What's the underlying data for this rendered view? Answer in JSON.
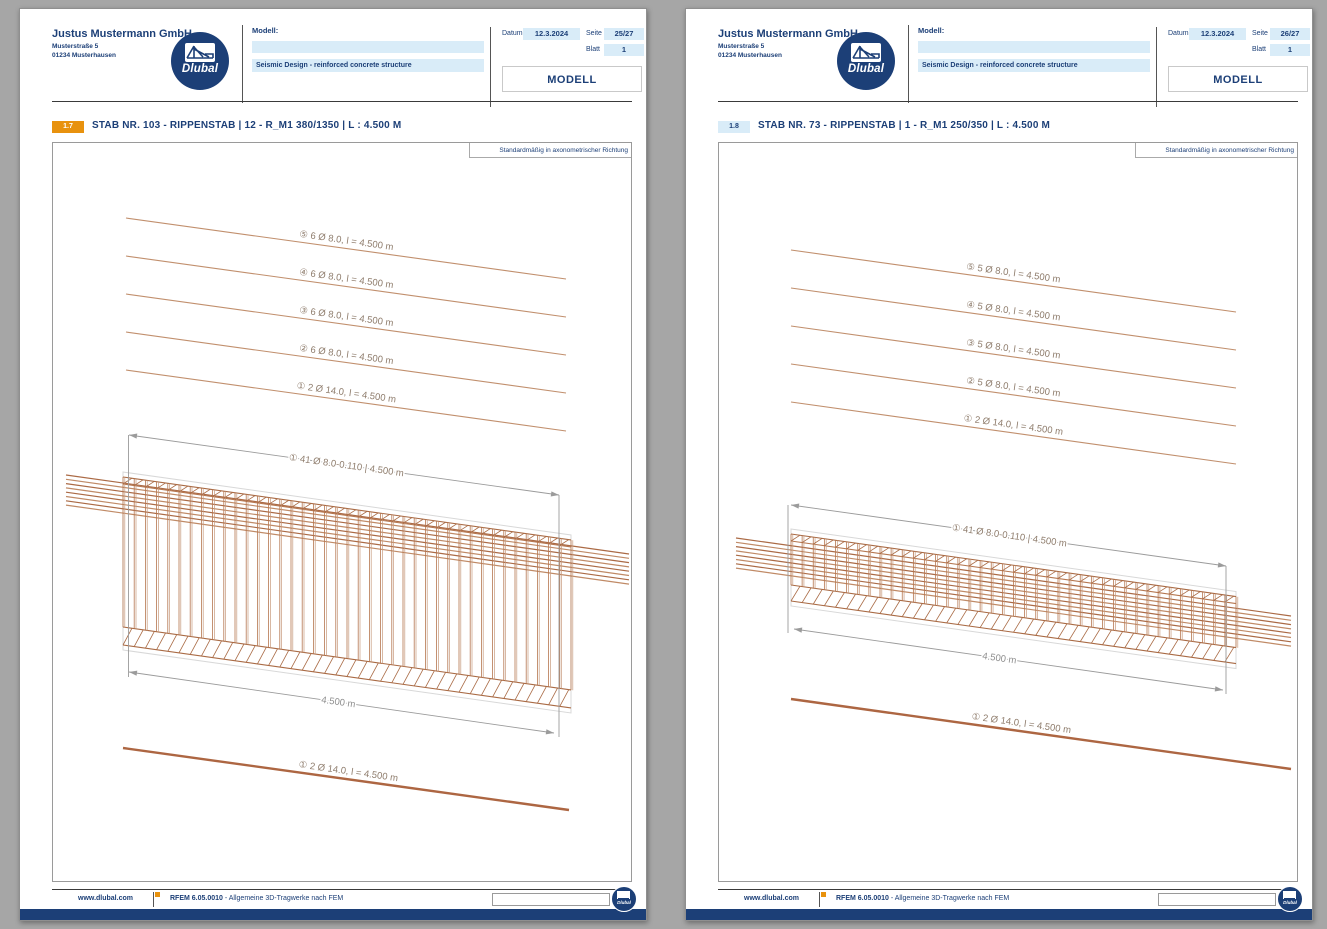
{
  "colors": {
    "navy": "#1c3f77",
    "light_blue_field": "#d9ecf8",
    "orange_accent": "#e8920e",
    "rebar_brown": "#b5764f",
    "dimension_gray": "#9b9b9b",
    "canvas_background": "#a6a6a6"
  },
  "pages": [
    {
      "header": {
        "company": "Justus Mustermann GmbH",
        "address1": "Musterstraße 5",
        "address2": "01234 Musterhausen",
        "logo_text": "Dlubal",
        "model_label": "Modell:",
        "model_value": "",
        "subtitle": "Seismic Design - reinforced concrete structure",
        "date_label": "Datum",
        "date_value": "12.3.2024",
        "page_label": "Seite",
        "page_value": "25/27",
        "sheet_label": "Blatt",
        "sheet_value": "1",
        "model_button": "MODELL"
      },
      "section": {
        "number": "1.7",
        "title": "STAB NR. 103 - RIPPENSTAB | 12 - R_M1 380/1350 | L : 4.500 M"
      },
      "drawing": {
        "view_note": "Standardmäßig in axonometrischer Richtung",
        "position_labels": [
          "⑤ 6 Ø 8.0, l = 4.500 m",
          "④ 6 Ø 8.0, l = 4.500 m",
          "③ 6 Ø 8.0, l = 4.500 m",
          "② 6 Ø 8.0, l = 4.500 m",
          "① 2 Ø 14.0, l = 4.500 m"
        ],
        "stirrup_label": "① 41 Ø 8.0-0.110 | 4.500 m",
        "length_dim": "4.500 m",
        "bottom_bar_label": "① 2 Ø 14.0, l = 4.500 m"
      },
      "footer": {
        "website": "www.dlubal.com",
        "program_bold": "RFEM 6.05.0010",
        "program_rest": " - Allgemeine 3D-Tragwerke nach FEM",
        "logo_text": "Dlubal"
      }
    },
    {
      "header": {
        "company": "Justus Mustermann GmbH",
        "address1": "Musterstraße 5",
        "address2": "01234 Musterhausen",
        "logo_text": "Dlubal",
        "model_label": "Modell:",
        "model_value": "",
        "subtitle": "Seismic Design - reinforced concrete structure",
        "date_label": "Datum",
        "date_value": "12.3.2024",
        "page_label": "Seite",
        "page_value": "26/27",
        "sheet_label": "Blatt",
        "sheet_value": "1",
        "model_button": "MODELL"
      },
      "section": {
        "number": "1.8",
        "title": "STAB NR. 73 - RIPPENSTAB | 1 - R_M1 250/350 | L : 4.500 M"
      },
      "drawing": {
        "view_note": "Standardmäßig in axonometrischer Richtung",
        "position_labels": [
          "⑤ 5 Ø 8.0, l = 4.500 m",
          "④ 5 Ø 8.0, l = 4.500 m",
          "③ 5 Ø 8.0, l = 4.500 m",
          "② 5 Ø 8.0, l = 4.500 m",
          "① 2 Ø 14.0, l = 4.500 m"
        ],
        "stirrup_label": "① 41 Ø 8.0-0.110 | 4.500 m",
        "length_dim": "4.500 m",
        "bottom_bar_label": "① 2 Ø 14.0, l = 4.500 m"
      },
      "footer": {
        "website": "www.dlubal.com",
        "program_bold": "RFEM 6.05.0010",
        "program_rest": " - Allgemeine 3D-Tragwerke nach FEM",
        "logo_text": "Dlubal"
      }
    }
  ]
}
